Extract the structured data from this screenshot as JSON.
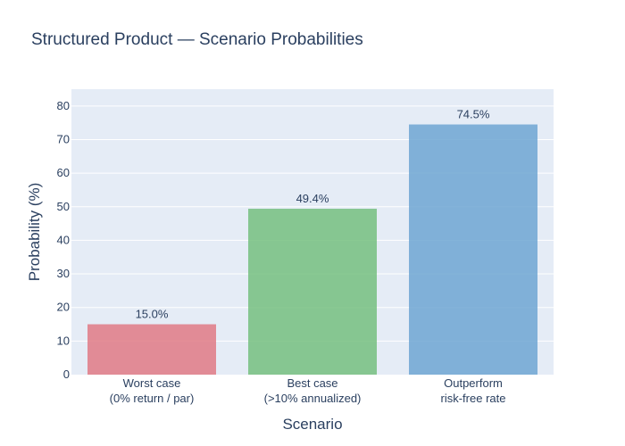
{
  "chart_data": {
    "type": "bar",
    "title": "Structured Product — Scenario Probabilities",
    "xlabel": "Scenario",
    "ylabel": "Probability (%)",
    "categories": [
      [
        "Worst case",
        "(0% return / par)"
      ],
      [
        "Best case",
        "(>10% annualized)"
      ],
      [
        "Outperform",
        "risk-free rate"
      ]
    ],
    "values": [
      15.0,
      49.4,
      74.5
    ],
    "data_labels": [
      "15.0%",
      "49.4%",
      "74.5%"
    ],
    "ylim": [
      0,
      85
    ],
    "yticks": [
      0,
      10,
      20,
      30,
      40,
      50,
      60,
      70,
      80
    ],
    "grid": true,
    "legend": false,
    "colors": {
      "plot_bg": "#e5ecf6",
      "bar_colors": [
        "#e07a85",
        "#76bf7f",
        "#6fa6d2"
      ],
      "text": "#2a3f5f",
      "grid": "#ffffff"
    }
  }
}
